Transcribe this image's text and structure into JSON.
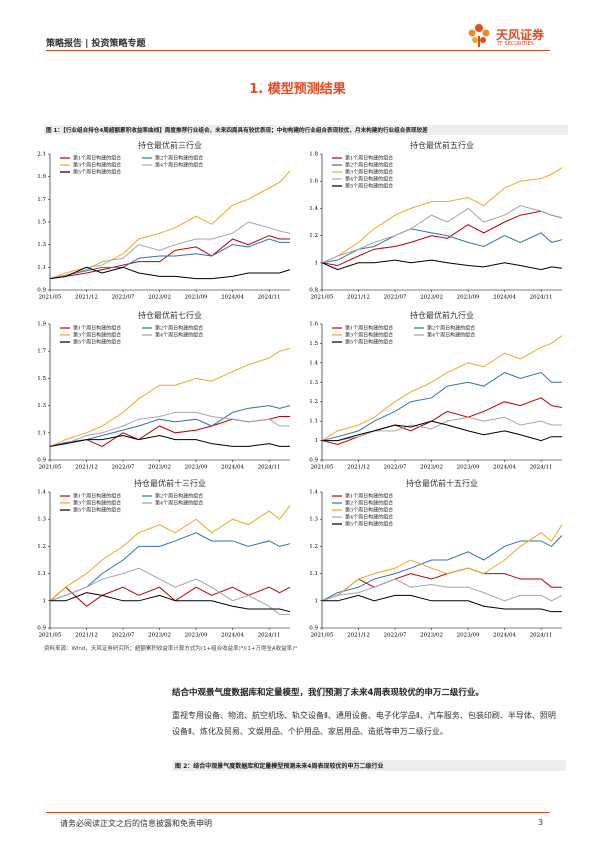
{
  "header": {
    "left": "策略报告 | 投资策略专题",
    "logo_name": "天风证券",
    "logo_en": "TF SECURITIES"
  },
  "section_title": "1. 模型预测结果",
  "figure1_caption": "图 1：【行业组合持仓4周超额累积收益率曲线】周度推荐行业组合，未来四周具有较优表现；中旬构建的行业组合表现较优，月末构建的行业组合表现较差",
  "chart_data": [
    {
      "type": "line",
      "title": "持仓最优前三行业",
      "x": [
        "2021/05",
        "2021/08",
        "2021/12",
        "2022/03",
        "2022/07",
        "2022/10",
        "2023/02",
        "2023/05",
        "2023/09",
        "2023/12",
        "2024/04",
        "2024/07",
        "2024/11",
        "2025/01",
        "2025/03"
      ],
      "xlim": [
        "2021/05",
        "2025/03"
      ],
      "xticks": [
        "2021/05",
        "2021/12",
        "2022/07",
        "2023/02",
        "2023/09",
        "2024/04",
        "2024/11"
      ],
      "ylim": [
        0.9,
        2.1
      ],
      "yticks": [
        0.9,
        1.1,
        1.3,
        1.5,
        1.7,
        1.9,
        2.1
      ],
      "legend_columns": 2,
      "series": [
        {
          "name": "第1个周日构建的组合",
          "color": "#c00000",
          "values": [
            1.0,
            1.02,
            1.05,
            1.08,
            1.12,
            1.15,
            1.15,
            1.25,
            1.28,
            1.2,
            1.35,
            1.3,
            1.38,
            1.35,
            1.35
          ]
        },
        {
          "name": "第2个周日构建的组合",
          "color": "#2e75b6",
          "values": [
            1.0,
            1.03,
            1.07,
            1.1,
            1.1,
            1.18,
            1.2,
            1.2,
            1.22,
            1.2,
            1.3,
            1.28,
            1.35,
            1.32,
            1.32
          ]
        },
        {
          "name": "第3个周日构建的组合",
          "color": "#f5a623",
          "values": [
            1.0,
            1.05,
            1.1,
            1.12,
            1.22,
            1.35,
            1.4,
            1.45,
            1.55,
            1.48,
            1.65,
            1.7,
            1.8,
            1.85,
            1.95
          ]
        },
        {
          "name": "第4个周日构建的组合",
          "color": "#a6a6a6",
          "values": [
            1.0,
            1.03,
            1.08,
            1.15,
            1.18,
            1.3,
            1.25,
            1.3,
            1.35,
            1.35,
            1.4,
            1.5,
            1.45,
            1.42,
            1.4
          ]
        },
        {
          "name": "第5个周日构建的组合",
          "color": "#000000",
          "values": [
            1.0,
            1.02,
            1.1,
            1.05,
            1.1,
            1.05,
            1.02,
            1.02,
            1.0,
            1.0,
            1.02,
            1.05,
            1.05,
            1.05,
            1.08
          ]
        }
      ]
    },
    {
      "type": "line",
      "title": "持仓最优前五行业",
      "x": [
        "2021/05",
        "2021/08",
        "2021/12",
        "2022/03",
        "2022/07",
        "2022/10",
        "2023/02",
        "2023/05",
        "2023/09",
        "2023/12",
        "2024/04",
        "2024/07",
        "2024/11",
        "2025/01",
        "2025/03"
      ],
      "xlim": [
        "2021/05",
        "2025/03"
      ],
      "xticks": [
        "2021/05",
        "2021/12",
        "2022/07",
        "2023/02",
        "2023/09",
        "2024/04",
        "2024/11"
      ],
      "ylim": [
        0.8,
        1.8
      ],
      "yticks": [
        0.8,
        1,
        1.2,
        1.4,
        1.6,
        1.8
      ],
      "legend_columns": 1,
      "series": [
        {
          "name": "第1个周日构建的组合",
          "color": "#c00000",
          "values": [
            1.0,
            0.98,
            1.05,
            1.1,
            1.12,
            1.15,
            1.2,
            1.18,
            1.28,
            1.22,
            1.3,
            1.35,
            1.38,
            1.35,
            1.33
          ]
        },
        {
          "name": "第2个周日构建的组合",
          "color": "#2e75b6",
          "values": [
            1.0,
            1.02,
            1.1,
            1.12,
            1.2,
            1.25,
            1.22,
            1.2,
            1.15,
            1.12,
            1.2,
            1.15,
            1.22,
            1.15,
            1.17
          ]
        },
        {
          "name": "第3个周日构建的组合",
          "color": "#f5a623",
          "values": [
            1.0,
            1.05,
            1.15,
            1.25,
            1.35,
            1.4,
            1.45,
            1.45,
            1.48,
            1.42,
            1.55,
            1.6,
            1.62,
            1.65,
            1.7
          ]
        },
        {
          "name": "第4个周日构建的组合",
          "color": "#a6a6a6",
          "values": [
            1.0,
            1.05,
            1.1,
            1.15,
            1.2,
            1.25,
            1.35,
            1.3,
            1.4,
            1.3,
            1.35,
            1.42,
            1.38,
            1.35,
            1.33
          ]
        },
        {
          "name": "第5个周日构建的组合",
          "color": "#000000",
          "values": [
            1.0,
            0.95,
            1.0,
            1.0,
            1.02,
            1.0,
            1.02,
            1.0,
            0.98,
            0.97,
            1.0,
            0.98,
            0.95,
            0.97,
            0.96
          ]
        }
      ]
    },
    {
      "type": "line",
      "title": "持仓最优前七行业",
      "x": [
        "2021/05",
        "2021/08",
        "2021/12",
        "2022/03",
        "2022/07",
        "2022/10",
        "2023/02",
        "2023/05",
        "2023/09",
        "2023/12",
        "2024/04",
        "2024/07",
        "2024/11",
        "2025/01",
        "2025/03"
      ],
      "xlim": [
        "2021/05",
        "2025/03"
      ],
      "xticks": [
        "2021/05",
        "2021/12",
        "2022/07",
        "2023/02",
        "2023/09",
        "2024/04",
        "2024/11"
      ],
      "ylim": [
        0.9,
        1.9
      ],
      "yticks": [
        0.9,
        1.1,
        1.3,
        1.5,
        1.7,
        1.9
      ],
      "legend_columns": 2,
      "series": [
        {
          "name": "第1个周日构建的组合",
          "color": "#c00000",
          "values": [
            1.0,
            1.02,
            1.05,
            1.0,
            1.1,
            1.05,
            1.15,
            1.1,
            1.12,
            1.15,
            1.2,
            1.18,
            1.2,
            1.22,
            1.22
          ]
        },
        {
          "name": "第2个周日构建的组合",
          "color": "#2e75b6",
          "values": [
            1.0,
            1.03,
            1.05,
            1.08,
            1.12,
            1.15,
            1.2,
            1.18,
            1.2,
            1.15,
            1.25,
            1.28,
            1.3,
            1.28,
            1.3
          ]
        },
        {
          "name": "第3个周日构建的组合",
          "color": "#f5a623",
          "values": [
            1.0,
            1.05,
            1.1,
            1.15,
            1.25,
            1.35,
            1.45,
            1.45,
            1.5,
            1.48,
            1.55,
            1.6,
            1.65,
            1.7,
            1.72
          ]
        },
        {
          "name": "第4个周日构建的组合",
          "color": "#a6a6a6",
          "values": [
            1.0,
            1.02,
            1.08,
            1.1,
            1.15,
            1.2,
            1.22,
            1.25,
            1.25,
            1.22,
            1.2,
            1.18,
            1.2,
            1.15,
            1.15
          ]
        },
        {
          "name": "第5个周日构建的组合",
          "color": "#000000",
          "values": [
            1.0,
            1.02,
            1.05,
            1.05,
            1.08,
            1.05,
            1.08,
            1.05,
            1.05,
            1.02,
            1.0,
            1.0,
            1.02,
            1.0,
            1.0
          ]
        }
      ]
    },
    {
      "type": "line",
      "title": "持仓最优前九行业",
      "x": [
        "2021/05",
        "2021/08",
        "2021/12",
        "2022/03",
        "2022/07",
        "2022/10",
        "2023/02",
        "2023/05",
        "2023/09",
        "2023/12",
        "2024/04",
        "2024/07",
        "2024/11",
        "2025/01",
        "2025/03"
      ],
      "xlim": [
        "2021/05",
        "2025/03"
      ],
      "xticks": [
        "2021/05",
        "2021/12",
        "2022/07",
        "2023/02",
        "2023/09",
        "2024/04",
        "2024/11"
      ],
      "ylim": [
        0.9,
        1.6
      ],
      "yticks": [
        0.9,
        1,
        1.1,
        1.2,
        1.3,
        1.4,
        1.5,
        1.6
      ],
      "legend_columns": 2,
      "series": [
        {
          "name": "第1个周日构建的组合",
          "color": "#c00000",
          "values": [
            1.0,
            0.98,
            1.02,
            1.05,
            1.08,
            1.05,
            1.1,
            1.15,
            1.12,
            1.15,
            1.2,
            1.18,
            1.22,
            1.18,
            1.17
          ]
        },
        {
          "name": "第2个周日构建的组合",
          "color": "#2e75b6",
          "values": [
            1.0,
            1.02,
            1.05,
            1.1,
            1.15,
            1.2,
            1.22,
            1.28,
            1.3,
            1.28,
            1.35,
            1.32,
            1.35,
            1.3,
            1.3
          ]
        },
        {
          "name": "第3个周日构建的组合",
          "color": "#f5a623",
          "values": [
            1.0,
            1.05,
            1.08,
            1.12,
            1.2,
            1.25,
            1.3,
            1.35,
            1.4,
            1.38,
            1.45,
            1.42,
            1.48,
            1.5,
            1.54
          ]
        },
        {
          "name": "第4个周日构建的组合",
          "color": "#a6a6a6",
          "values": [
            1.0,
            1.0,
            1.02,
            1.05,
            1.05,
            1.08,
            1.06,
            1.1,
            1.12,
            1.1,
            1.12,
            1.08,
            1.1,
            1.08,
            1.08
          ]
        },
        {
          "name": "第5个周日构建的组合",
          "color": "#000000",
          "values": [
            1.0,
            1.0,
            1.03,
            1.05,
            1.08,
            1.07,
            1.1,
            1.08,
            1.05,
            1.03,
            1.05,
            1.03,
            1.0,
            1.02,
            1.02
          ]
        }
      ]
    },
    {
      "type": "line",
      "title": "持仓最优前十三行业",
      "x": [
        "2021/05",
        "2021/08",
        "2021/12",
        "2022/03",
        "2022/07",
        "2022/10",
        "2023/02",
        "2023/05",
        "2023/09",
        "2023/12",
        "2024/04",
        "2024/07",
        "2024/11",
        "2025/01",
        "2025/03"
      ],
      "xlim": [
        "2021/05",
        "2025/03"
      ],
      "xticks": [
        "2021/05",
        "2021/12",
        "2022/07",
        "2023/02",
        "2023/09",
        "2024/04",
        "2024/11"
      ],
      "ylim": [
        0.9,
        1.4
      ],
      "yticks": [
        0.9,
        1,
        1.1,
        1.2,
        1.3,
        1.4
      ],
      "legend_columns": 2,
      "series": [
        {
          "name": "第1个周日构建的组合",
          "color": "#c00000",
          "values": [
            1.0,
            1.05,
            0.98,
            1.02,
            1.05,
            1.02,
            1.05,
            1.0,
            1.05,
            1.02,
            1.05,
            1.02,
            1.05,
            1.03,
            1.05
          ]
        },
        {
          "name": "第2个周日构建的组合",
          "color": "#2e75b6",
          "values": [
            1.0,
            1.02,
            1.05,
            1.1,
            1.15,
            1.2,
            1.2,
            1.22,
            1.25,
            1.22,
            1.22,
            1.2,
            1.22,
            1.2,
            1.21
          ]
        },
        {
          "name": "第3个周日构建的组合",
          "color": "#f5a623",
          "values": [
            1.0,
            1.05,
            1.1,
            1.15,
            1.2,
            1.25,
            1.28,
            1.25,
            1.3,
            1.25,
            1.3,
            1.28,
            1.33,
            1.3,
            1.35
          ]
        },
        {
          "name": "第4个周日构建的组合",
          "color": "#a6a6a6",
          "values": [
            1.0,
            1.02,
            1.05,
            1.08,
            1.1,
            1.12,
            1.08,
            1.05,
            1.08,
            1.05,
            1.0,
            1.02,
            0.98,
            0.95,
            0.95
          ]
        },
        {
          "name": "第5个周日构建的组合",
          "color": "#000000",
          "values": [
            1.0,
            1.0,
            1.03,
            1.02,
            1.0,
            1.0,
            1.02,
            1.0,
            1.0,
            1.0,
            0.98,
            0.97,
            0.97,
            0.97,
            0.96
          ]
        }
      ]
    },
    {
      "type": "line",
      "title": "持仓最优前十五行业",
      "x": [
        "2021/05",
        "2021/08",
        "2021/12",
        "2022/03",
        "2022/07",
        "2022/10",
        "2023/02",
        "2023/05",
        "2023/09",
        "2023/12",
        "2024/04",
        "2024/07",
        "2024/11",
        "2025/01",
        "2025/03"
      ],
      "xlim": [
        "2021/05",
        "2025/03"
      ],
      "xticks": [
        "2021/05",
        "2021/12",
        "2022/07",
        "2023/02",
        "2023/09",
        "2024/04",
        "2024/11"
      ],
      "ylim": [
        0.9,
        1.4
      ],
      "yticks": [
        0.9,
        1,
        1.1,
        1.2,
        1.3,
        1.4
      ],
      "legend_columns": 1,
      "series": [
        {
          "name": "第1个周日构建的组合",
          "color": "#c00000",
          "values": [
            1.0,
            1.02,
            1.08,
            1.05,
            1.08,
            1.1,
            1.08,
            1.1,
            1.12,
            1.1,
            1.1,
            1.08,
            1.08,
            1.05,
            1.05
          ]
        },
        {
          "name": "第2个周日构建的组合",
          "color": "#2e75b6",
          "values": [
            1.0,
            1.03,
            1.05,
            1.08,
            1.1,
            1.12,
            1.15,
            1.15,
            1.18,
            1.15,
            1.2,
            1.22,
            1.22,
            1.2,
            1.24
          ]
        },
        {
          "name": "第3个周日构建的组合",
          "color": "#f5a623",
          "values": [
            1.0,
            1.02,
            1.08,
            1.1,
            1.12,
            1.15,
            1.12,
            1.1,
            1.12,
            1.1,
            1.15,
            1.2,
            1.25,
            1.22,
            1.28
          ]
        },
        {
          "name": "第4个周日构建的组合",
          "color": "#a6a6a6",
          "values": [
            1.0,
            1.02,
            1.03,
            1.05,
            1.08,
            1.05,
            1.06,
            1.05,
            1.05,
            1.03,
            1.0,
            1.02,
            1.02,
            1.0,
            1.02
          ]
        },
        {
          "name": "第5个周日构建的组合",
          "color": "#000000",
          "values": [
            1.0,
            1.0,
            1.02,
            1.0,
            1.02,
            1.02,
            1.0,
            1.0,
            1.0,
            0.98,
            0.97,
            0.97,
            0.97,
            0.96,
            0.96
          ]
        }
      ]
    }
  ],
  "source": "资料来源：Wind，天风证券研究所；超额累积收益率计算方式为(1+组合收益率)ᴺ/(1+万得全A收益率)ᴺ",
  "summary": "结合中观景气度数据库和定量模型，我们预测了未来4周表现较优的申万二级行业。",
  "paragraph": "重视专用设备、物流、航空机场、轨交设备Ⅱ、通用设备、电子化学品Ⅱ、汽车服务、包装印刷、半导体、照明设备Ⅱ、炼化及贸易、文娱用品、个护用品、家居用品、造纸等申万二级行业。",
  "figure2_caption": "图 2：结合中观景气度数据库和定量模型预测未来4周表现较优的申万二级行业",
  "footer": {
    "text": "请务必阅读正文之后的信息披露和免责申明",
    "page": 3
  }
}
